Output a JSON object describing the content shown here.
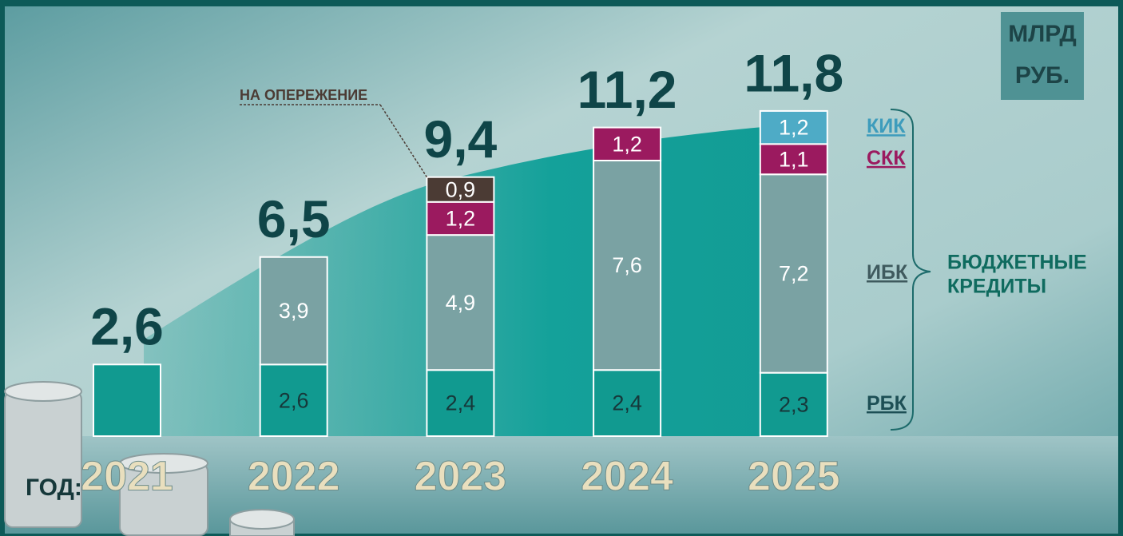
{
  "chart_data": {
    "type": "stacked-bar",
    "unit": [
      "МЛРД",
      "РУБ."
    ],
    "x_label": "ГОД:",
    "categories": [
      "2021",
      "2022",
      "2023",
      "2024",
      "2025"
    ],
    "series": [
      {
        "name": "РБК",
        "color": "#119a90",
        "text_color": "#1d4f55",
        "label_color": "#16383a",
        "values": [
          2.6,
          2.6,
          2.4,
          2.4,
          2.3
        ],
        "value_labels": [
          null,
          "2,6",
          "2,4",
          "2,4",
          "2,3"
        ]
      },
      {
        "name": "ИБК",
        "color": "#7aa2a3",
        "text_color": "#3f5a5e",
        "label_color": "#ffffff",
        "values": [
          null,
          3.9,
          4.9,
          7.6,
          7.2
        ],
        "value_labels": [
          null,
          "3,9",
          "4,9",
          "7,6",
          "7,2"
        ]
      },
      {
        "name": "СКК",
        "color": "#9b1a5f",
        "text_color": "#9b1a5f",
        "label_color": "#ffffff",
        "values": [
          null,
          null,
          1.2,
          1.2,
          1.1
        ],
        "value_labels": [
          null,
          null,
          "1,2",
          "1,2",
          "1,1"
        ]
      },
      {
        "name": "НА ОПЕРЕЖЕНИЕ",
        "color": "#4b3b34",
        "text_color": "#4b3b34",
        "label_color": "#ffffff",
        "legend": false,
        "values": [
          null,
          null,
          0.9,
          null,
          null
        ],
        "value_labels": [
          null,
          null,
          "0,9",
          null,
          null
        ]
      },
      {
        "name": "КИК",
        "color": "#4eabc6",
        "text_color": "#3d9cbc",
        "label_color": "#ffffff",
        "values": [
          null,
          null,
          null,
          null,
          1.2
        ],
        "value_labels": [
          null,
          null,
          null,
          null,
          "1,2"
        ]
      }
    ],
    "totals": {
      "values": [
        2.6,
        6.5,
        9.4,
        11.2,
        11.8
      ],
      "value_labels": [
        "2,6",
        "6,5",
        "9,4",
        "11,2",
        "11,8"
      ]
    },
    "brace_label": [
      "БЮДЖЕТНЫЕ",
      "КРЕДИТЫ"
    ]
  }
}
